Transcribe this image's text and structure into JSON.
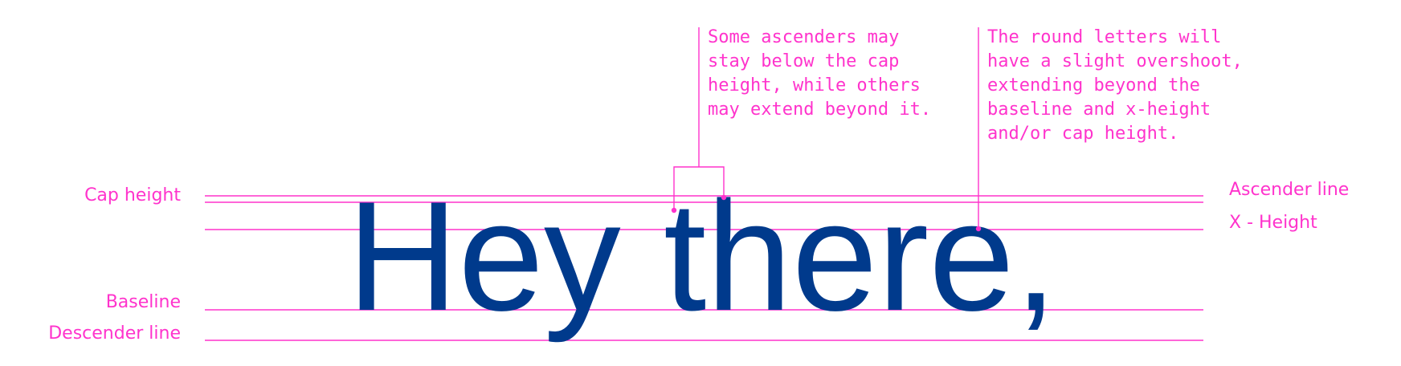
{
  "specimen": {
    "text": "Hey there,",
    "color": "#003a8c"
  },
  "guide_color": "#ff33cc",
  "left_labels": {
    "cap_height": "Cap height",
    "baseline": "Baseline",
    "descender_line": "Descender line"
  },
  "right_labels": {
    "ascender_line": "Ascender line",
    "x_height": "X - Height"
  },
  "annotations": {
    "ascenders": "Some ascenders may\nstay below the cap\nheight, while others\nmay extend beyond it.",
    "overshoot": "The round letters will\nhave a slight overshoot,\nextending beyond the\nbaseline and x-height\nand/or cap height."
  }
}
